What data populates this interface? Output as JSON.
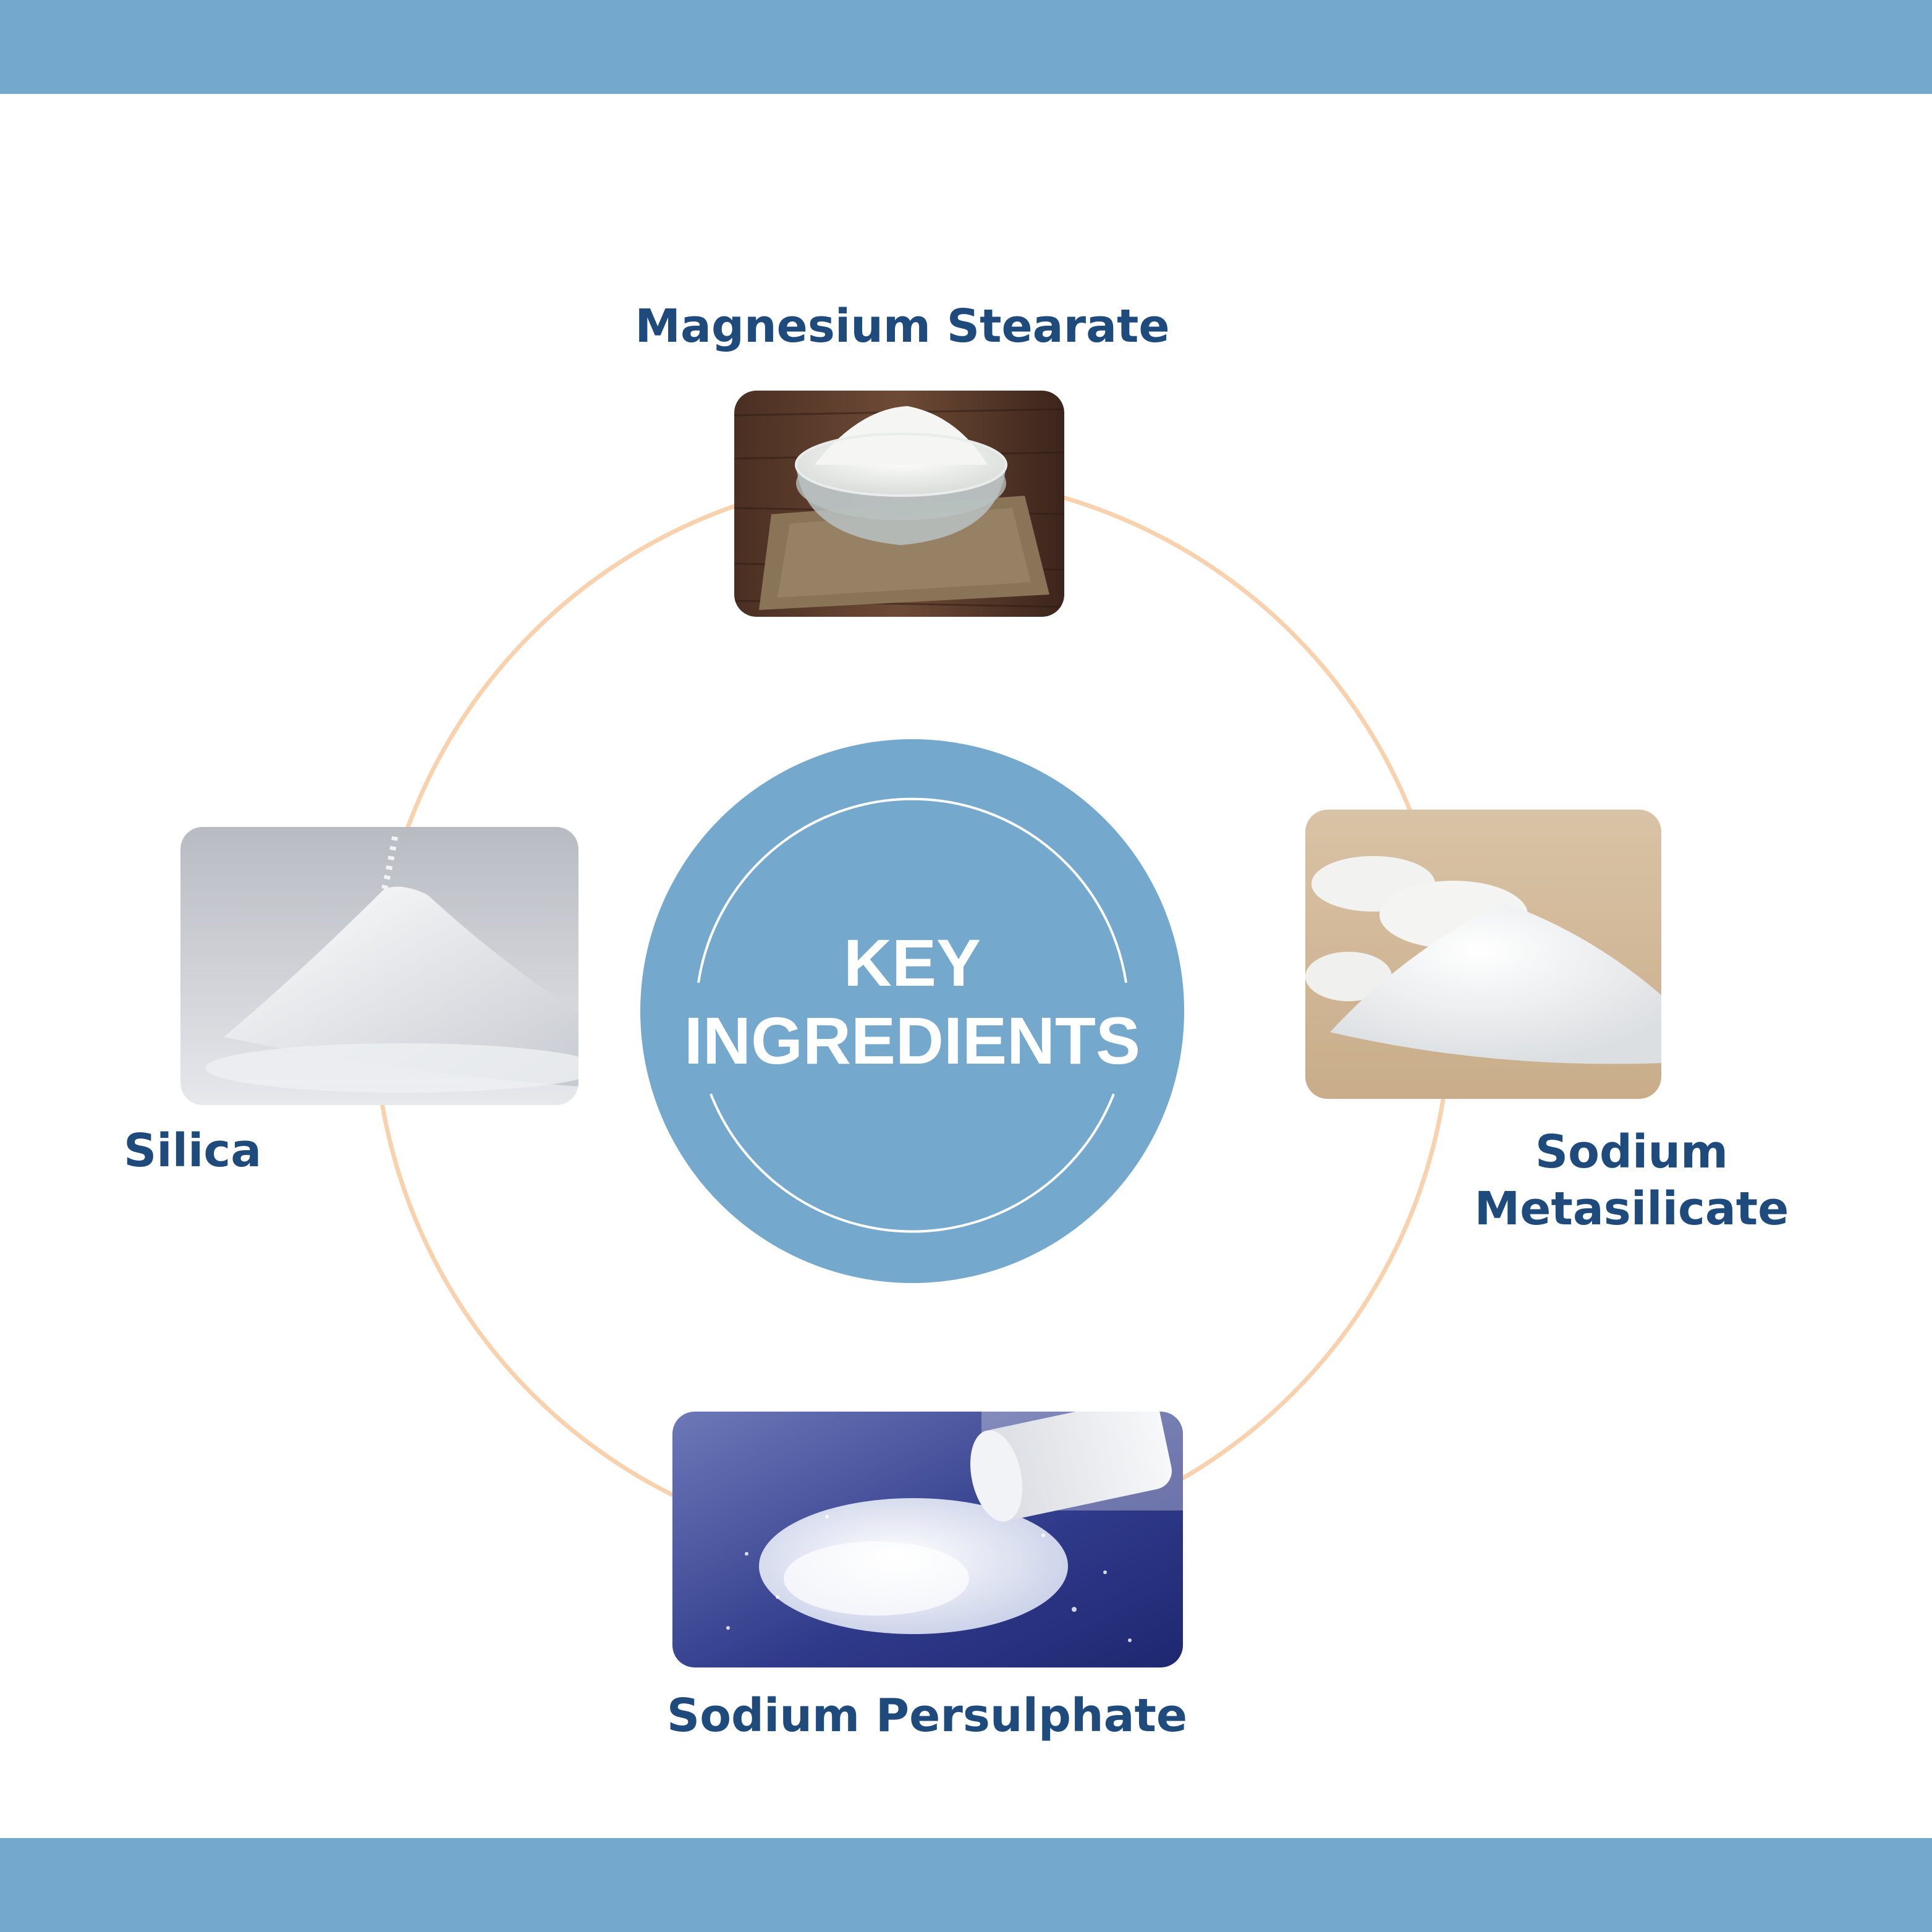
{
  "center": {
    "line1": "KEY",
    "line2": "INGREDIENTS"
  },
  "ingredients": [
    {
      "name": "Magnesium Stearate"
    },
    {
      "name": "Silica"
    },
    {
      "name": "Sodium\nMetasilicate",
      "line1": "Sodium",
      "line2": "Metasilicate"
    },
    {
      "name": "Sodium Persulphate"
    }
  ],
  "colors": {
    "band": "#74a8cd",
    "circle": "#74a8cd",
    "ring": "#f8d2ae",
    "label_text": "#1f4a7c",
    "center_text": "#ffffff"
  }
}
